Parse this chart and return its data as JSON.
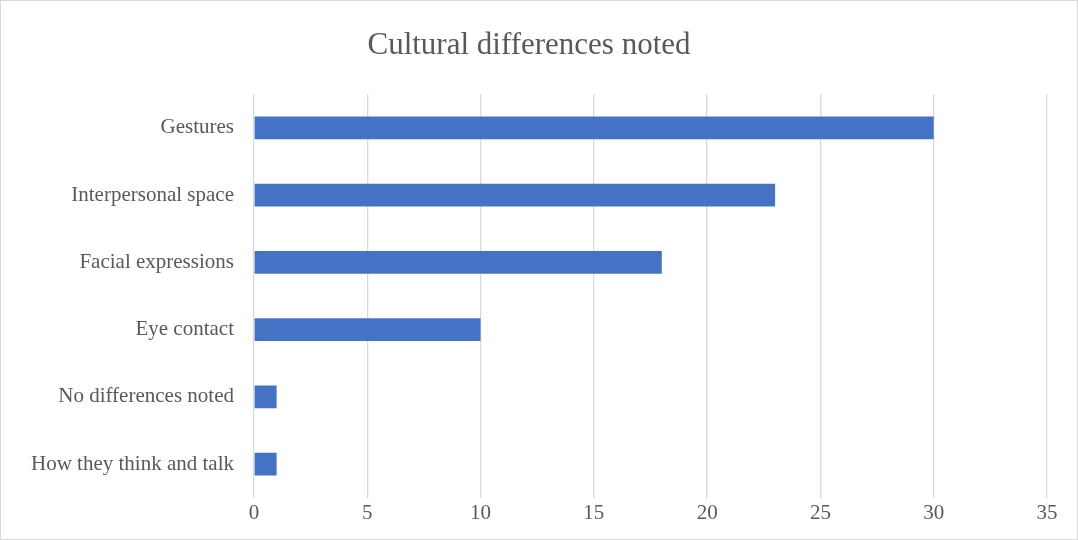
{
  "chart_data": {
    "type": "bar",
    "orientation": "horizontal",
    "title": "Cultural differences noted",
    "categories": [
      "Gestures",
      "Interpersonal space",
      "Facial expressions",
      "Eye contact",
      "No differences noted",
      "How they think and talk"
    ],
    "values": [
      30,
      23,
      18,
      10,
      1,
      1
    ],
    "color": "#4472c4",
    "xlim": [
      0,
      35
    ],
    "xticks": [
      0,
      5,
      10,
      15,
      20,
      25,
      30,
      35
    ],
    "grid": "x",
    "legend": false
  }
}
